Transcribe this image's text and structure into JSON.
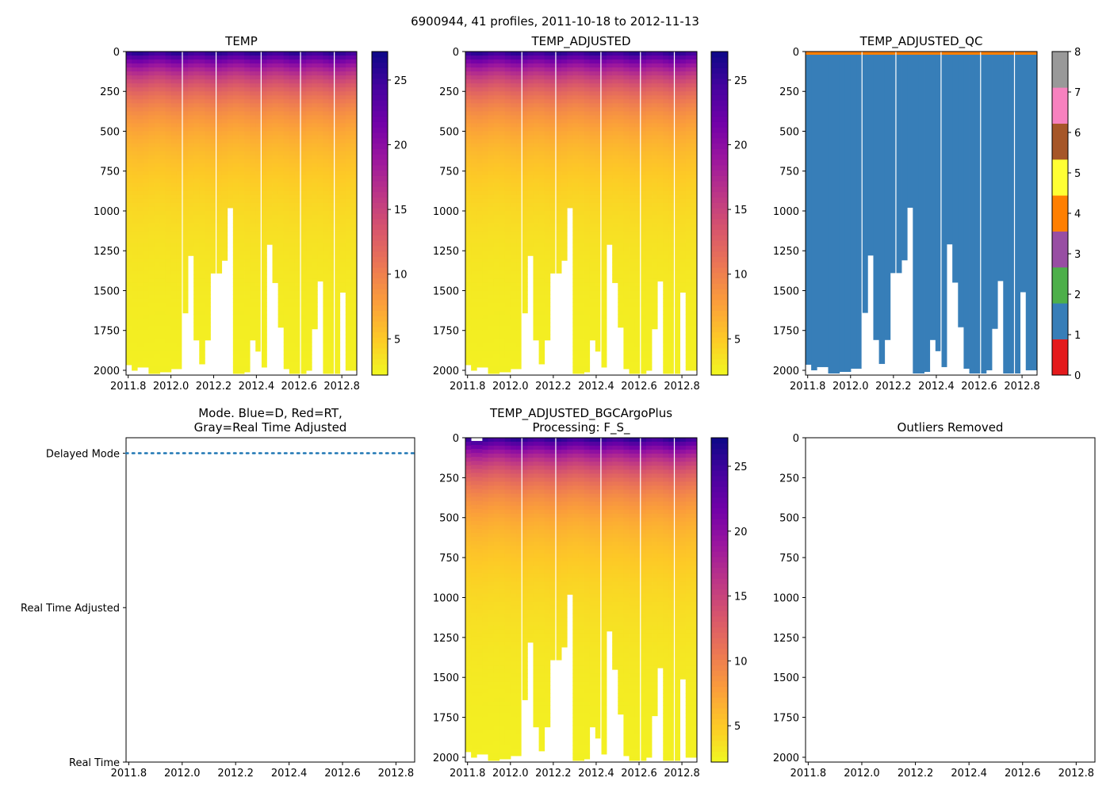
{
  "figure": {
    "suptitle": "6900944, 41 profiles, 2011-10-18 to 2012-11-13"
  },
  "colors": {
    "plasma": [
      "#f0f921",
      "#fdca26",
      "#fb9f3a",
      "#ed7953",
      "#d8576b",
      "#bd3786",
      "#9c179e",
      "#7201a8",
      "#46039f",
      "#0d0887"
    ],
    "qc": [
      "#e41a1c",
      "#377eb8",
      "#4daf4a",
      "#984ea3",
      "#ff7f00",
      "#ffff33",
      "#a65628",
      "#f781bf",
      "#999999"
    ],
    "mode_line": "#1f77b4"
  },
  "chart_data": [
    {
      "id": "temp",
      "type": "heatmap",
      "title": "TEMP",
      "x_range": [
        2011.79,
        2012.87
      ],
      "y_range": [
        2030,
        0
      ],
      "x_ticks": [
        "2011.8",
        "2012.0",
        "2012.2",
        "2012.4",
        "2012.6",
        "2012.8"
      ],
      "y_ticks": [
        "0",
        "250",
        "500",
        "750",
        "1000",
        "1250",
        "1500",
        "1750",
        "2000"
      ],
      "colorbar": {
        "range": [
          2.2,
          27.2
        ],
        "ticks": [
          "5",
          "10",
          "15",
          "20",
          "25"
        ]
      },
      "variable": "temperature",
      "profile_max_depth": [
        1965,
        2000,
        1980,
        1980,
        2020,
        2020,
        2010,
        2010,
        1990,
        1990,
        1640,
        1280,
        1810,
        1960,
        1810,
        1390,
        1390,
        1310,
        980,
        2020,
        2020,
        2010,
        1810,
        1880,
        1980,
        1210,
        1450,
        1730,
        1990,
        2020,
        2020,
        2020,
        2000,
        1740,
        1440,
        2020,
        2020,
        2020,
        1510,
        2000,
        2000
      ]
    },
    {
      "id": "temp_adjusted",
      "type": "heatmap",
      "title": "TEMP_ADJUSTED",
      "x_range": [
        2011.79,
        2012.87
      ],
      "y_range": [
        2030,
        0
      ],
      "x_ticks": [
        "2011.8",
        "2012.0",
        "2012.2",
        "2012.4",
        "2012.6",
        "2012.8"
      ],
      "y_ticks": [
        "0",
        "250",
        "500",
        "750",
        "1000",
        "1250",
        "1500",
        "1750",
        "2000"
      ],
      "colorbar": {
        "range": [
          2.2,
          27.2
        ],
        "ticks": [
          "5",
          "10",
          "15",
          "20",
          "25"
        ]
      },
      "variable": "temperature",
      "profile_max_depth": [
        1965,
        2000,
        1980,
        1980,
        2020,
        2020,
        2010,
        2010,
        1990,
        1990,
        1640,
        1280,
        1810,
        1960,
        1810,
        1390,
        1390,
        1310,
        980,
        2020,
        2020,
        2010,
        1810,
        1880,
        1980,
        1210,
        1450,
        1730,
        1990,
        2020,
        2020,
        2020,
        2000,
        1740,
        1440,
        2020,
        2020,
        2020,
        1510,
        2000,
        2000
      ]
    },
    {
      "id": "temp_adjusted_qc",
      "type": "heatmap",
      "title": "TEMP_ADJUSTED_QC",
      "x_range": [
        2011.79,
        2012.87
      ],
      "y_range": [
        2030,
        0
      ],
      "x_ticks": [
        "2011.8",
        "2012.0",
        "2012.2",
        "2012.4",
        "2012.6",
        "2012.8"
      ],
      "y_ticks": [
        "0",
        "250",
        "500",
        "750",
        "1000",
        "1250",
        "1500",
        "1750",
        "2000"
      ],
      "colorbar": {
        "range": [
          0,
          8
        ],
        "ticks": [
          "0",
          "1",
          "2",
          "3",
          "4",
          "5",
          "6",
          "7",
          "8"
        ],
        "discrete": true
      },
      "qc_surface_flag": 4,
      "qc_surface_depth": 20,
      "qc_main_flag": 1,
      "profile_max_depth": [
        1965,
        2000,
        1980,
        1980,
        2020,
        2020,
        2010,
        2010,
        1990,
        1990,
        1640,
        1280,
        1810,
        1960,
        1810,
        1390,
        1390,
        1310,
        980,
        2020,
        2020,
        2010,
        1810,
        1880,
        1980,
        1210,
        1450,
        1730,
        1990,
        2020,
        2020,
        2020,
        2000,
        1740,
        1440,
        2020,
        2020,
        2020,
        1510,
        2000,
        2000
      ]
    },
    {
      "id": "mode",
      "type": "line",
      "title_lines": [
        "Mode. Blue=D, Red=RT,",
        "Gray=Real Time Adjusted"
      ],
      "x_range": [
        2011.79,
        2012.87
      ],
      "x_ticks": [
        "2011.8",
        "2012.0",
        "2012.2",
        "2012.4",
        "2012.6",
        "2012.8"
      ],
      "y_categories": [
        "Real Time",
        "Real Time Adjusted",
        "Delayed Mode"
      ],
      "y_range": [
        0,
        2.1
      ],
      "series": [
        {
          "name": "Delayed Mode",
          "y": 2,
          "x": [
            2011.79,
            2012.87
          ],
          "style": "dotted"
        }
      ]
    },
    {
      "id": "bgc",
      "type": "heatmap",
      "title_lines": [
        "TEMP_ADJUSTED_BGCArgoPlus",
        "Processing: F_S_"
      ],
      "x_range": [
        2011.79,
        2012.87
      ],
      "y_range": [
        2030,
        0
      ],
      "x_ticks": [
        "2011.8",
        "2012.0",
        "2012.2",
        "2012.4",
        "2012.6",
        "2012.8"
      ],
      "y_ticks": [
        "0",
        "250",
        "500",
        "750",
        "1000",
        "1250",
        "1500",
        "1750",
        "2000"
      ],
      "colorbar": {
        "range": [
          2.2,
          27.2
        ],
        "ticks": [
          "5",
          "10",
          "15",
          "20",
          "25"
        ]
      },
      "variable": "temperature",
      "profile_min_depth": [
        0,
        20,
        20,
        0,
        0,
        0,
        0,
        0,
        0,
        0,
        0,
        0,
        0,
        0,
        0,
        0,
        0,
        0,
        0,
        0,
        0,
        0,
        0,
        0,
        0,
        0,
        0,
        0,
        0,
        0,
        0,
        0,
        0,
        0,
        0,
        0,
        0,
        0,
        0,
        0,
        0
      ],
      "profile_max_depth": [
        1965,
        2000,
        1980,
        1980,
        2020,
        2020,
        2010,
        2010,
        1990,
        1990,
        1640,
        1280,
        1810,
        1960,
        1810,
        1390,
        1390,
        1310,
        980,
        2020,
        2020,
        2010,
        1810,
        1880,
        1980,
        1210,
        1450,
        1730,
        1990,
        2020,
        2020,
        2020,
        2000,
        1740,
        1440,
        2020,
        2020,
        2020,
        1510,
        2000,
        2000
      ]
    },
    {
      "id": "outliers",
      "type": "scatter",
      "title": "Outliers Removed",
      "x_range": [
        2011.79,
        2012.87
      ],
      "y_range": [
        2030,
        0
      ],
      "x_ticks": [
        "2011.8",
        "2012.0",
        "2012.2",
        "2012.4",
        "2012.6",
        "2012.8"
      ],
      "y_ticks": [
        "0",
        "250",
        "500",
        "750",
        "1000",
        "1250",
        "1500",
        "1750",
        "2000"
      ],
      "points": []
    }
  ]
}
